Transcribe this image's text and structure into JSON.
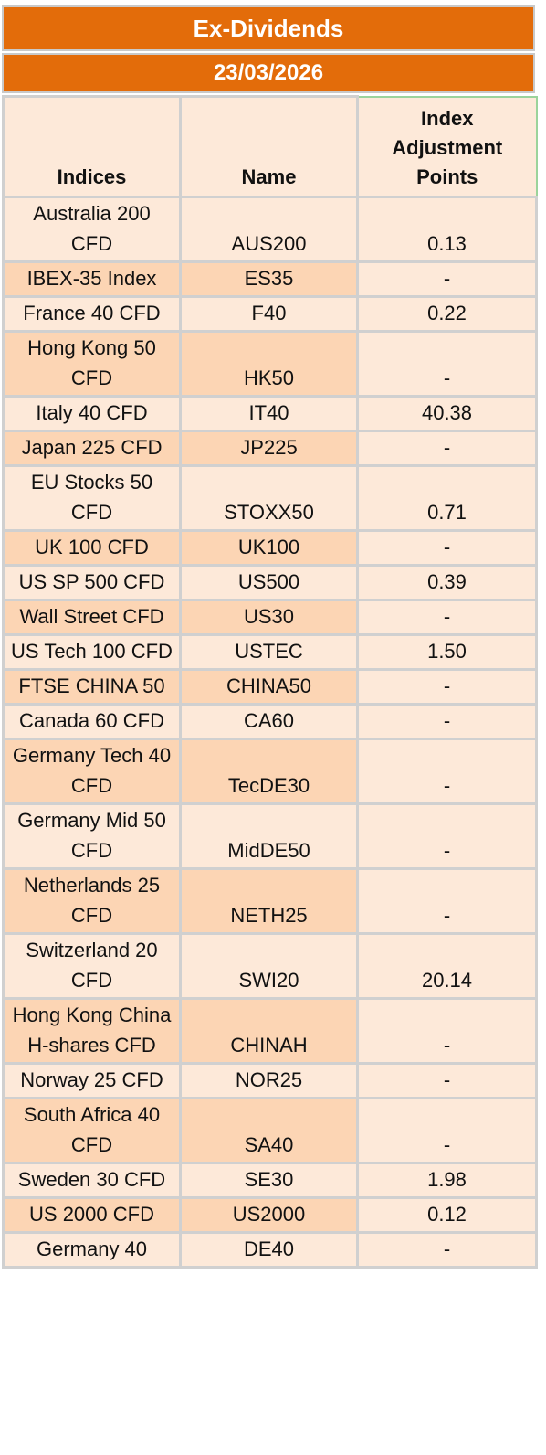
{
  "title": "Ex-Dividends",
  "date": "23/03/2026",
  "columns": [
    "Indices",
    "Name",
    "Index Adjustment Points"
  ],
  "rows": [
    {
      "index": "Australia 200 CFD",
      "name": "AUS200",
      "points": "0.13"
    },
    {
      "index": "IBEX-35 Index",
      "name": "ES35",
      "points": "-"
    },
    {
      "index": "France 40 CFD",
      "name": "F40",
      "points": "0.22"
    },
    {
      "index": "Hong Kong 50 CFD",
      "name": "HK50",
      "points": "-"
    },
    {
      "index": "Italy 40 CFD",
      "name": "IT40",
      "points": "40.38"
    },
    {
      "index": "Japan 225 CFD",
      "name": "JP225",
      "points": "-"
    },
    {
      "index": "EU Stocks 50 CFD",
      "name": "STOXX50",
      "points": "0.71"
    },
    {
      "index": "UK 100 CFD",
      "name": "UK100",
      "points": "-"
    },
    {
      "index": "US SP 500 CFD",
      "name": "US500",
      "points": "0.39"
    },
    {
      "index": "Wall Street CFD",
      "name": "US30",
      "points": "-"
    },
    {
      "index": "US Tech 100 CFD",
      "name": "USTEC",
      "points": "1.50"
    },
    {
      "index": "FTSE CHINA 50",
      "name": "CHINA50",
      "points": "-"
    },
    {
      "index": "Canada 60 CFD",
      "name": "CA60",
      "points": "-"
    },
    {
      "index": "Germany Tech 40 CFD",
      "name": "TecDE30",
      "points": "-"
    },
    {
      "index": "Germany Mid 50 CFD",
      "name": "MidDE50",
      "points": "-"
    },
    {
      "index": "Netherlands 25 CFD",
      "name": "NETH25",
      "points": "-"
    },
    {
      "index": "Switzerland 20 CFD",
      "name": "SWI20",
      "points": "20.14"
    },
    {
      "index": "Hong Kong China H-shares CFD",
      "name": "CHINAH",
      "points": "-"
    },
    {
      "index": "Norway 25 CFD",
      "name": "NOR25",
      "points": "-"
    },
    {
      "index": "South Africa 40 CFD",
      "name": "SA40",
      "points": "-"
    },
    {
      "index": "Sweden 30 CFD",
      "name": "SE30",
      "points": "1.98"
    },
    {
      "index": "US 2000 CFD",
      "name": "US2000",
      "points": "0.12"
    },
    {
      "index": "Germany 40",
      "name": "DE40",
      "points": "-"
    }
  ]
}
